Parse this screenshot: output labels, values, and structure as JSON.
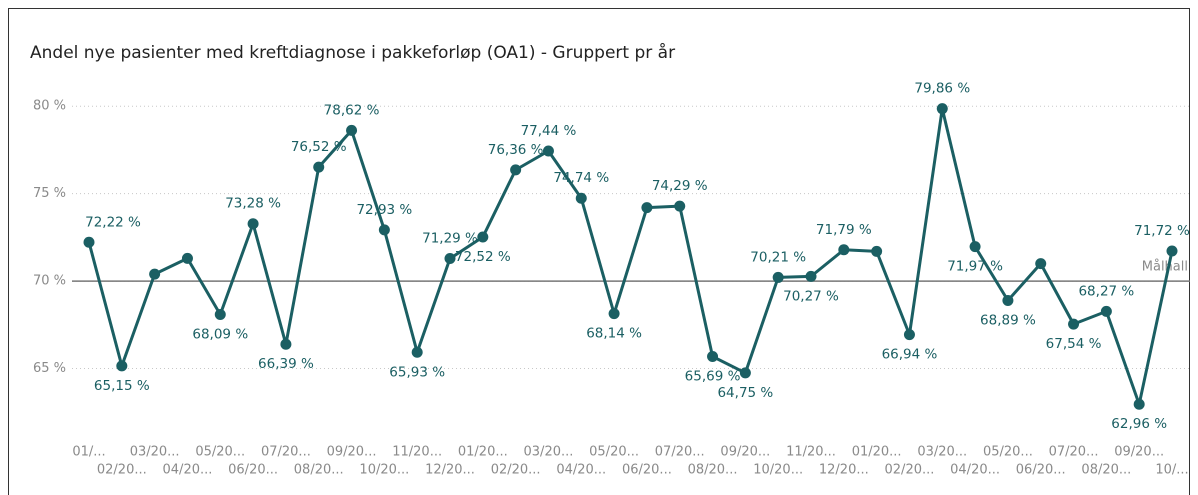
{
  "chart_data": {
    "type": "line",
    "title": "Andel nye pasienter med kreftdiagnose i pakkeforløp (OA1) - Gruppert pr år",
    "categories": [
      "01/...",
      "02/20...",
      "03/20...",
      "04/20...",
      "05/20...",
      "06/20...",
      "07/20...",
      "08/20...",
      "09/20...",
      "10/20...",
      "11/20...",
      "12/20...",
      "01/20...",
      "02/20...",
      "03/20...",
      "04/20...",
      "05/20...",
      "06/20...",
      "07/20...",
      "08/20...",
      "09/20...",
      "10/20...",
      "11/20...",
      "12/20...",
      "01/20...",
      "02/20...",
      "03/20...",
      "04/20...",
      "05/20...",
      "06/20...",
      "07/20...",
      "08/20...",
      "09/20...",
      "10/..."
    ],
    "series": [
      {
        "color": "#1b5f63",
        "values": [
          72.22,
          65.15,
          70.4,
          71.3,
          68.09,
          73.28,
          66.39,
          76.52,
          78.62,
          72.93,
          65.93,
          71.29,
          72.52,
          76.36,
          77.44,
          74.74,
          68.14,
          74.2,
          74.29,
          65.69,
          64.75,
          70.21,
          70.27,
          71.79,
          71.7,
          66.94,
          79.86,
          71.97,
          68.89,
          71.0,
          67.54,
          68.27,
          62.96,
          71.72
        ],
        "value_labels": [
          "72,22 %",
          "65,15 %",
          null,
          null,
          "68,09 %",
          "73,28 %",
          "66,39 %",
          "76,52 %",
          "78,62 %",
          "72,93 %",
          "65,93 %",
          "71,29 %",
          "72,52 %",
          "76,36 %",
          "77,44 %",
          "74,74 %",
          "68,14 %",
          null,
          "74,29 %",
          "65,69 %",
          "64,75 %",
          "70,21 %",
          "70,27 %",
          "71,79 %",
          null,
          "66,94 %",
          "79,86 %",
          "71,97 %",
          "68,89 %",
          null,
          "67,54 %",
          "68,27 %",
          "62,96 %",
          "71,72 %"
        ]
      }
    ],
    "ylim": [
      62,
      81.5
    ],
    "yticks": [
      {
        "value": 65,
        "label": "65 %"
      },
      {
        "value": 70,
        "label": "70 %"
      },
      {
        "value": 75,
        "label": "75 %"
      },
      {
        "value": 80,
        "label": "80 %"
      }
    ],
    "grid": true,
    "reference_line": {
      "value": 70,
      "label": "Målhall"
    }
  }
}
